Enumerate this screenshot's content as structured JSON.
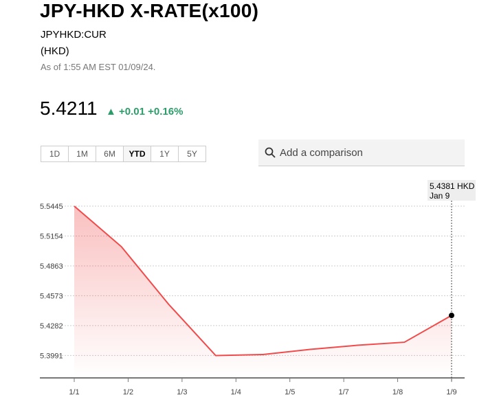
{
  "header": {
    "title": "JPY-HKD X-RATE(x100)",
    "symbol": "JPYHKD:CUR",
    "currency": "(HKD)",
    "as_of": "As of 1:55 AM EST 01/09/24."
  },
  "quote": {
    "price": "5.4211",
    "change": "+0.01",
    "change_pct": "+0.16%",
    "direction": "up",
    "color": "#2a9d68"
  },
  "ranges": [
    {
      "label": "1D"
    },
    {
      "label": "1M"
    },
    {
      "label": "6M"
    },
    {
      "label": "YTD",
      "active": true
    },
    {
      "label": "1Y"
    },
    {
      "label": "5Y"
    }
  ],
  "search": {
    "placeholder": "Add a comparison",
    "icon": "search-icon"
  },
  "tooltip": {
    "value": "5.4381 HKD",
    "date": "Jan 9"
  },
  "chart_data": {
    "type": "area",
    "line_color": "#f04a4a",
    "x_tick_labels": [
      "1/1",
      "1/2",
      "1/3",
      "1/4",
      "1/5",
      "1/7",
      "1/8",
      "1/9"
    ],
    "y_ticks": [
      "5.5445",
      "5.5154",
      "5.4863",
      "5.4573",
      "5.4282",
      "5.3991"
    ],
    "ylim": [
      5.375,
      5.555
    ],
    "grid": "horizontal dotted",
    "values": [
      5.5445,
      5.505,
      5.449,
      5.399,
      5.4,
      5.405,
      5.409,
      5.412,
      5.4381
    ]
  }
}
